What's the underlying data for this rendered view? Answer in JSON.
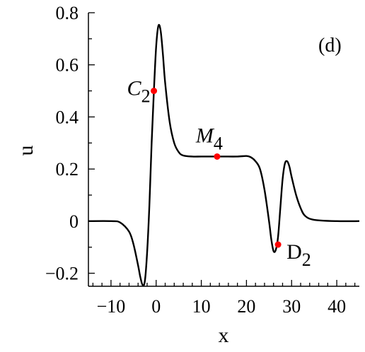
{
  "chart_data": {
    "type": "line",
    "panel_label": "(d)",
    "xlabel": "x",
    "ylabel": "u",
    "xlim": [
      -15,
      45
    ],
    "ylim": [
      -0.25,
      0.8
    ],
    "x_ticks": [
      -10,
      0,
      10,
      20,
      30,
      40
    ],
    "x_tick_labels": [
      "−10",
      "0",
      "10",
      "20",
      "30",
      "40"
    ],
    "y_ticks": [
      -0.2,
      0,
      0.2,
      0.4,
      0.6,
      0.8
    ],
    "y_tick_labels": [
      "−0.2",
      "0",
      "0.2",
      "0.4",
      "0.6",
      "0.8"
    ],
    "grid": false,
    "line_color": "#000000",
    "marker_color": "#ff0000",
    "series": [
      {
        "x": [
          -15,
          -10,
          -8,
          -6,
          -5,
          -4,
          -3.5,
          -3,
          -2.5,
          -2,
          -1.5,
          -1,
          -0.5,
          0,
          0.5,
          1,
          1.5,
          2,
          3,
          4,
          5,
          6,
          8,
          10,
          13,
          15,
          18,
          20,
          21,
          22,
          23,
          24,
          25,
          25.5,
          26,
          26.5,
          27,
          27.5,
          28,
          28.5,
          29,
          29.5,
          30,
          31,
          32,
          33,
          35,
          40,
          45
        ],
        "y": [
          0,
          0,
          -0.005,
          -0.04,
          -0.09,
          -0.17,
          -0.215,
          -0.245,
          -0.23,
          -0.12,
          0.06,
          0.3,
          0.5,
          0.67,
          0.75,
          0.73,
          0.64,
          0.53,
          0.38,
          0.3,
          0.265,
          0.252,
          0.248,
          0.248,
          0.248,
          0.248,
          0.248,
          0.25,
          0.245,
          0.23,
          0.2,
          0.12,
          0.0,
          -0.07,
          -0.115,
          -0.11,
          -0.06,
          0.05,
          0.16,
          0.22,
          0.23,
          0.21,
          0.17,
          0.1,
          0.05,
          0.02,
          0.005,
          0,
          0
        ]
      }
    ],
    "points": [
      {
        "label_main": "C",
        "label_sub": "2",
        "x": -0.5,
        "y": 0.5
      },
      {
        "label_main": "M",
        "label_sub": "4",
        "x": 13.5,
        "y": 0.248
      },
      {
        "label_main": "D",
        "label_sub": "2",
        "x": 27,
        "y": -0.09
      }
    ]
  }
}
